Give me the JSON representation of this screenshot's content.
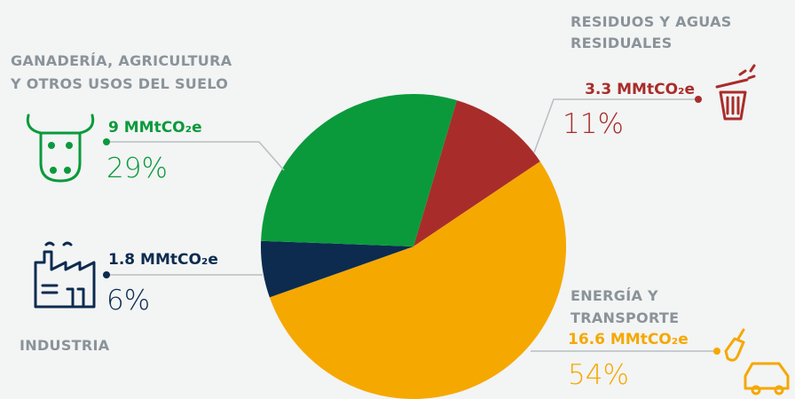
{
  "chart_data": {
    "type": "pie",
    "categories": [
      [
        "RESIDUOS Y AGUAS",
        "RESIDUALES"
      ],
      [
        "ENERGÍA Y",
        "TRANSPORTE"
      ],
      [
        "INDUSTRIA"
      ],
      [
        "GANADERÍA, AGRICULTURA",
        "Y OTROS USOS DEL SUELO"
      ]
    ],
    "values": [
      11,
      54,
      6,
      29
    ],
    "value_labels": [
      "11%",
      "54%",
      "6%",
      "29%"
    ],
    "amount_labels": [
      "3.3 MMtCO₂e",
      "16.6 MMtCO₂e",
      "1.8 MMtCO₂e",
      "9 MMtCO₂e"
    ],
    "colors": [
      "#a82d2a",
      "#f5a800",
      "#0c2b4f",
      "#0a9a3c"
    ]
  }
}
